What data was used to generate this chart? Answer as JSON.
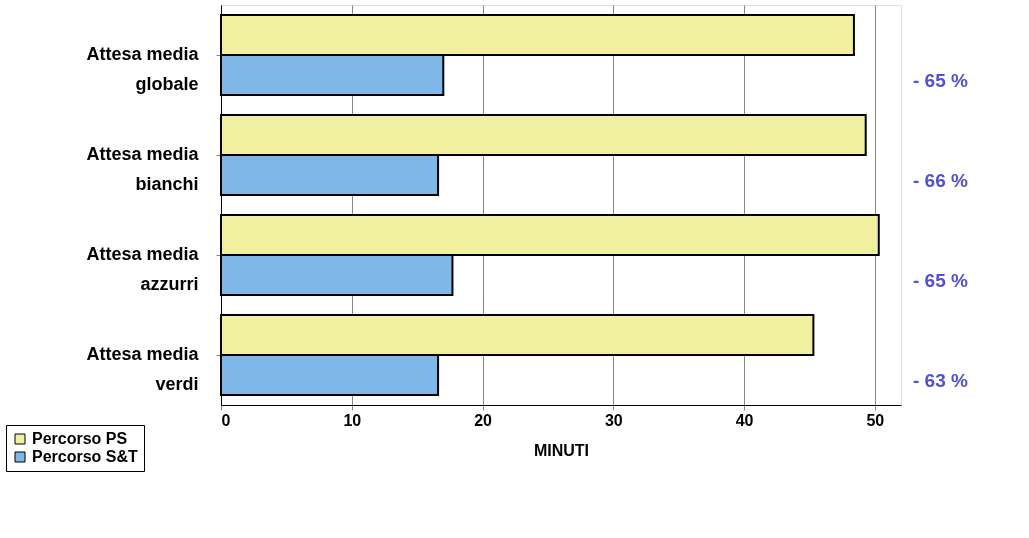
{
  "chart_data": {
    "type": "bar",
    "orientation": "horizontal",
    "xlabel": "MINUTI",
    "categories": [
      "Attesa media globale",
      "Attesa media bianchi",
      "Attesa media azzurri",
      "Attesa media verdi"
    ],
    "series": [
      {
        "name": "Percorso PS",
        "color": "#f0f0a0",
        "values": [
          48.4,
          49.3,
          50.3,
          45.3
        ]
      },
      {
        "name": "Percorso S&T",
        "color": "#7fb8e8",
        "values": [
          17.0,
          16.6,
          17.7,
          16.6
        ]
      }
    ],
    "xlim": [
      0,
      52
    ],
    "xticks": [
      0,
      10,
      20,
      30,
      40,
      50
    ],
    "grid": "x",
    "legend": "bottom left",
    "annotations": [
      "- 65 %",
      "- 66 %",
      "- 65 %",
      "- 63 %"
    ]
  }
}
